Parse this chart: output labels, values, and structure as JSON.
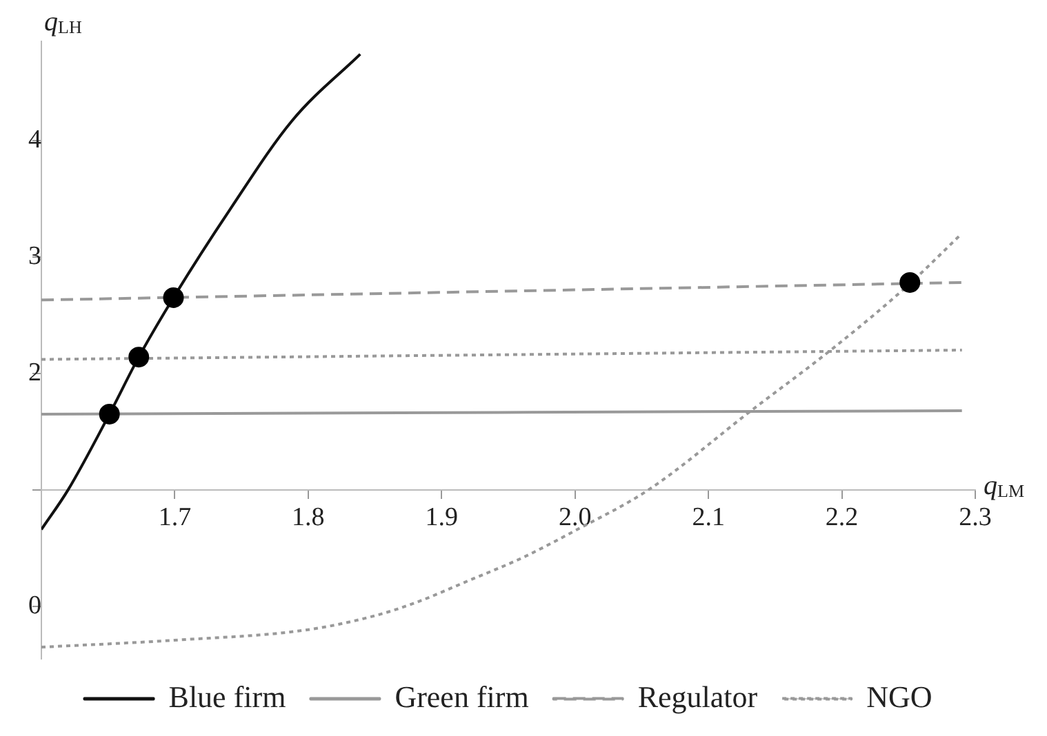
{
  "chart_data": {
    "type": "line",
    "xlabel": "q$_{LM}$",
    "ylabel": "q$_{LH}$",
    "xlim": [
      1.6,
      2.3
    ],
    "xticks": [
      {
        "value": 1.6,
        "label": null
      },
      1.7,
      1.8,
      1.9,
      {
        "value": 2,
        "label": "2.0"
      },
      2.1,
      2.2,
      2.3
    ],
    "ylim": [
      -0.45,
      4.85
    ],
    "yticks": [
      0,
      {
        "value": 1,
        "label": null
      },
      2,
      3,
      4
    ],
    "grid": false,
    "legend": "bottom",
    "marker": "none",
    "series": [
      {
        "name": "Blue firm",
        "color": "#111111",
        "line_style": "solid",
        "x": [
          1.6,
          1.62,
          1.651,
          1.673,
          1.699,
          1.741,
          1.788,
          1.839
        ],
        "values": [
          0.66,
          1.0,
          1.65,
          2.14,
          2.65,
          3.4,
          4.17,
          4.74
        ]
      },
      {
        "name": "Green firm",
        "color": "#999999",
        "line_style": "solid",
        "x": [
          1.6,
          2.29
        ],
        "values": [
          1.65,
          1.68
        ]
      },
      {
        "name": "Regulator",
        "color": "#999999",
        "line_style": "dashed",
        "x": [
          1.6,
          2.29
        ],
        "values": [
          2.63,
          2.78
        ]
      },
      {
        "name": "NGO",
        "color": "#999999",
        "line_style": "dotted",
        "x": [
          1.6,
          2.29
        ],
        "values": [
          2.12,
          2.2
        ]
      },
      {
        "color": "#999999",
        "line_style": "dotted",
        "x": [
          1.6,
          1.7,
          1.8,
          1.85,
          1.88,
          1.92,
          1.961,
          2.0,
          2.055,
          2.132,
          2.195,
          2.249,
          2.289
        ],
        "values": [
          -0.35,
          -0.29,
          -0.2,
          -0.08,
          0.03,
          0.22,
          0.42,
          0.65,
          1.0,
          1.68,
          2.23,
          2.75,
          3.19
        ]
      },
      {
        "type": "scatter",
        "color": "#000000",
        "marker": "circle",
        "x": [
          1.651,
          1.673,
          1.699,
          2.251
        ],
        "values": [
          1.65,
          2.14,
          2.65,
          2.78
        ]
      }
    ]
  }
}
